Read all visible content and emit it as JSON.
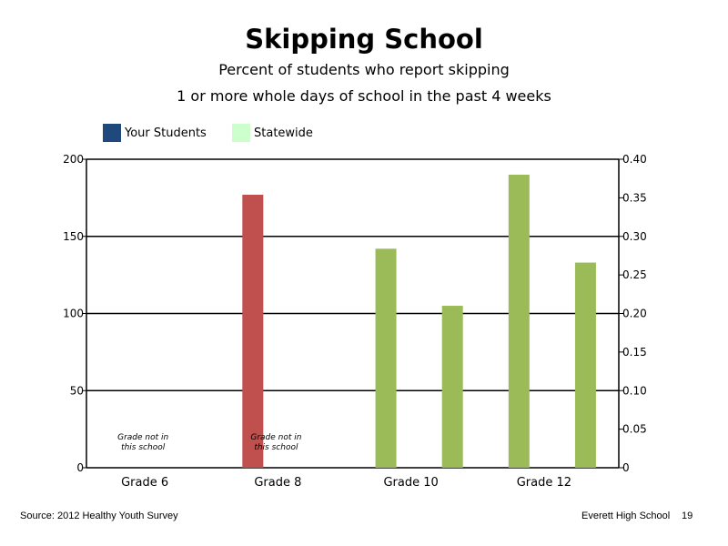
{
  "chart_data": {
    "type": "bar",
    "title": "Skipping School",
    "subtitle": [
      "Percent of students who report skipping",
      "1 or more whole days of school in the past 4 weeks"
    ],
    "legend": [
      {
        "label": "Your Students",
        "color": "#1f497d"
      },
      {
        "label": "Statewide",
        "color": "#ccffcc"
      }
    ],
    "legend_placement": "top-left",
    "categories": [
      "Grade 6",
      "Grade 8",
      "Grade 10",
      "Grade 12"
    ],
    "left_axis": {
      "ticks": [
        "0",
        "50",
        "100",
        "150",
        "200"
      ],
      "ylim": [
        0,
        200
      ]
    },
    "right_axis": {
      "ticks": [
        "0",
        "0.05",
        "0.10",
        "0.15",
        "0.20",
        "0.25",
        "0.30",
        "0.35",
        "0.40"
      ],
      "ylim": [
        0,
        0.4
      ]
    },
    "grid": true,
    "series": [
      {
        "color": "#c0504d",
        "axis": "left",
        "values": [
          {
            "x": 2.5,
            "value": 177
          }
        ]
      },
      {
        "color": "#9bbb59",
        "axis": "left",
        "values": [
          {
            "x": 4.5,
            "value": 142
          },
          {
            "x": 5.5,
            "value": 105
          },
          {
            "x": 6.5,
            "value": 190
          },
          {
            "x": 7.5,
            "value": 133
          }
        ]
      }
    ],
    "annotations": [
      {
        "text": [
          "Grade not in",
          "this school"
        ],
        "x": 0.85
      },
      {
        "text": [
          "Grade not in",
          "this school"
        ],
        "x": 2.85
      }
    ]
  },
  "footer": {
    "source": "Source: 2012 Healthy Youth Survey",
    "school": "Everett High School",
    "page": "19"
  }
}
